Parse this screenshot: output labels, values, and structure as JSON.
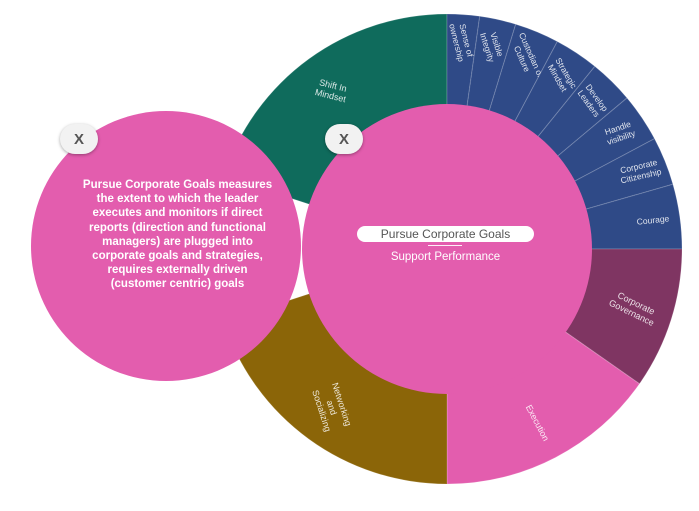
{
  "ring_segments": [
    {
      "label": "Shift In Mindset",
      "color": "#0f6b5c"
    },
    {
      "label": "Sense of ownership",
      "color": "#2f4a87"
    },
    {
      "label": "Visible Integrity",
      "color": "#2f4a87"
    },
    {
      "label": "Custodian of Culture",
      "color": "#2f4a87"
    },
    {
      "label": "Strategic Mindset",
      "color": "#2f4a87"
    },
    {
      "label": "Develop Leaders",
      "color": "#2f4a87"
    },
    {
      "label": "Handle visibility",
      "color": "#2f4a87"
    },
    {
      "label": "Corporate Citizenship",
      "color": "#2f4a87"
    },
    {
      "label": "Courage",
      "color": "#2f4a87"
    },
    {
      "label": "Corporate Governance",
      "color": "#7f3562"
    },
    {
      "label": "Execution",
      "color": "#e35dae"
    },
    {
      "label": "Networking and Socializing",
      "color": "#8b6508"
    }
  ],
  "center": {
    "title": "Pursue Corporate Goals",
    "subtitle": "Support Performance",
    "color": "#e35dae"
  },
  "detail": {
    "text": "Pursue Corporate Goals measures the extent to which the leader executes and monitors if direct reports (direction and functional managers) are plugged into corporate goals and strategies, requires externally driven (customer centric) goals",
    "color": "#e35dae"
  },
  "close_left_label": "X",
  "close_center_label": "X"
}
